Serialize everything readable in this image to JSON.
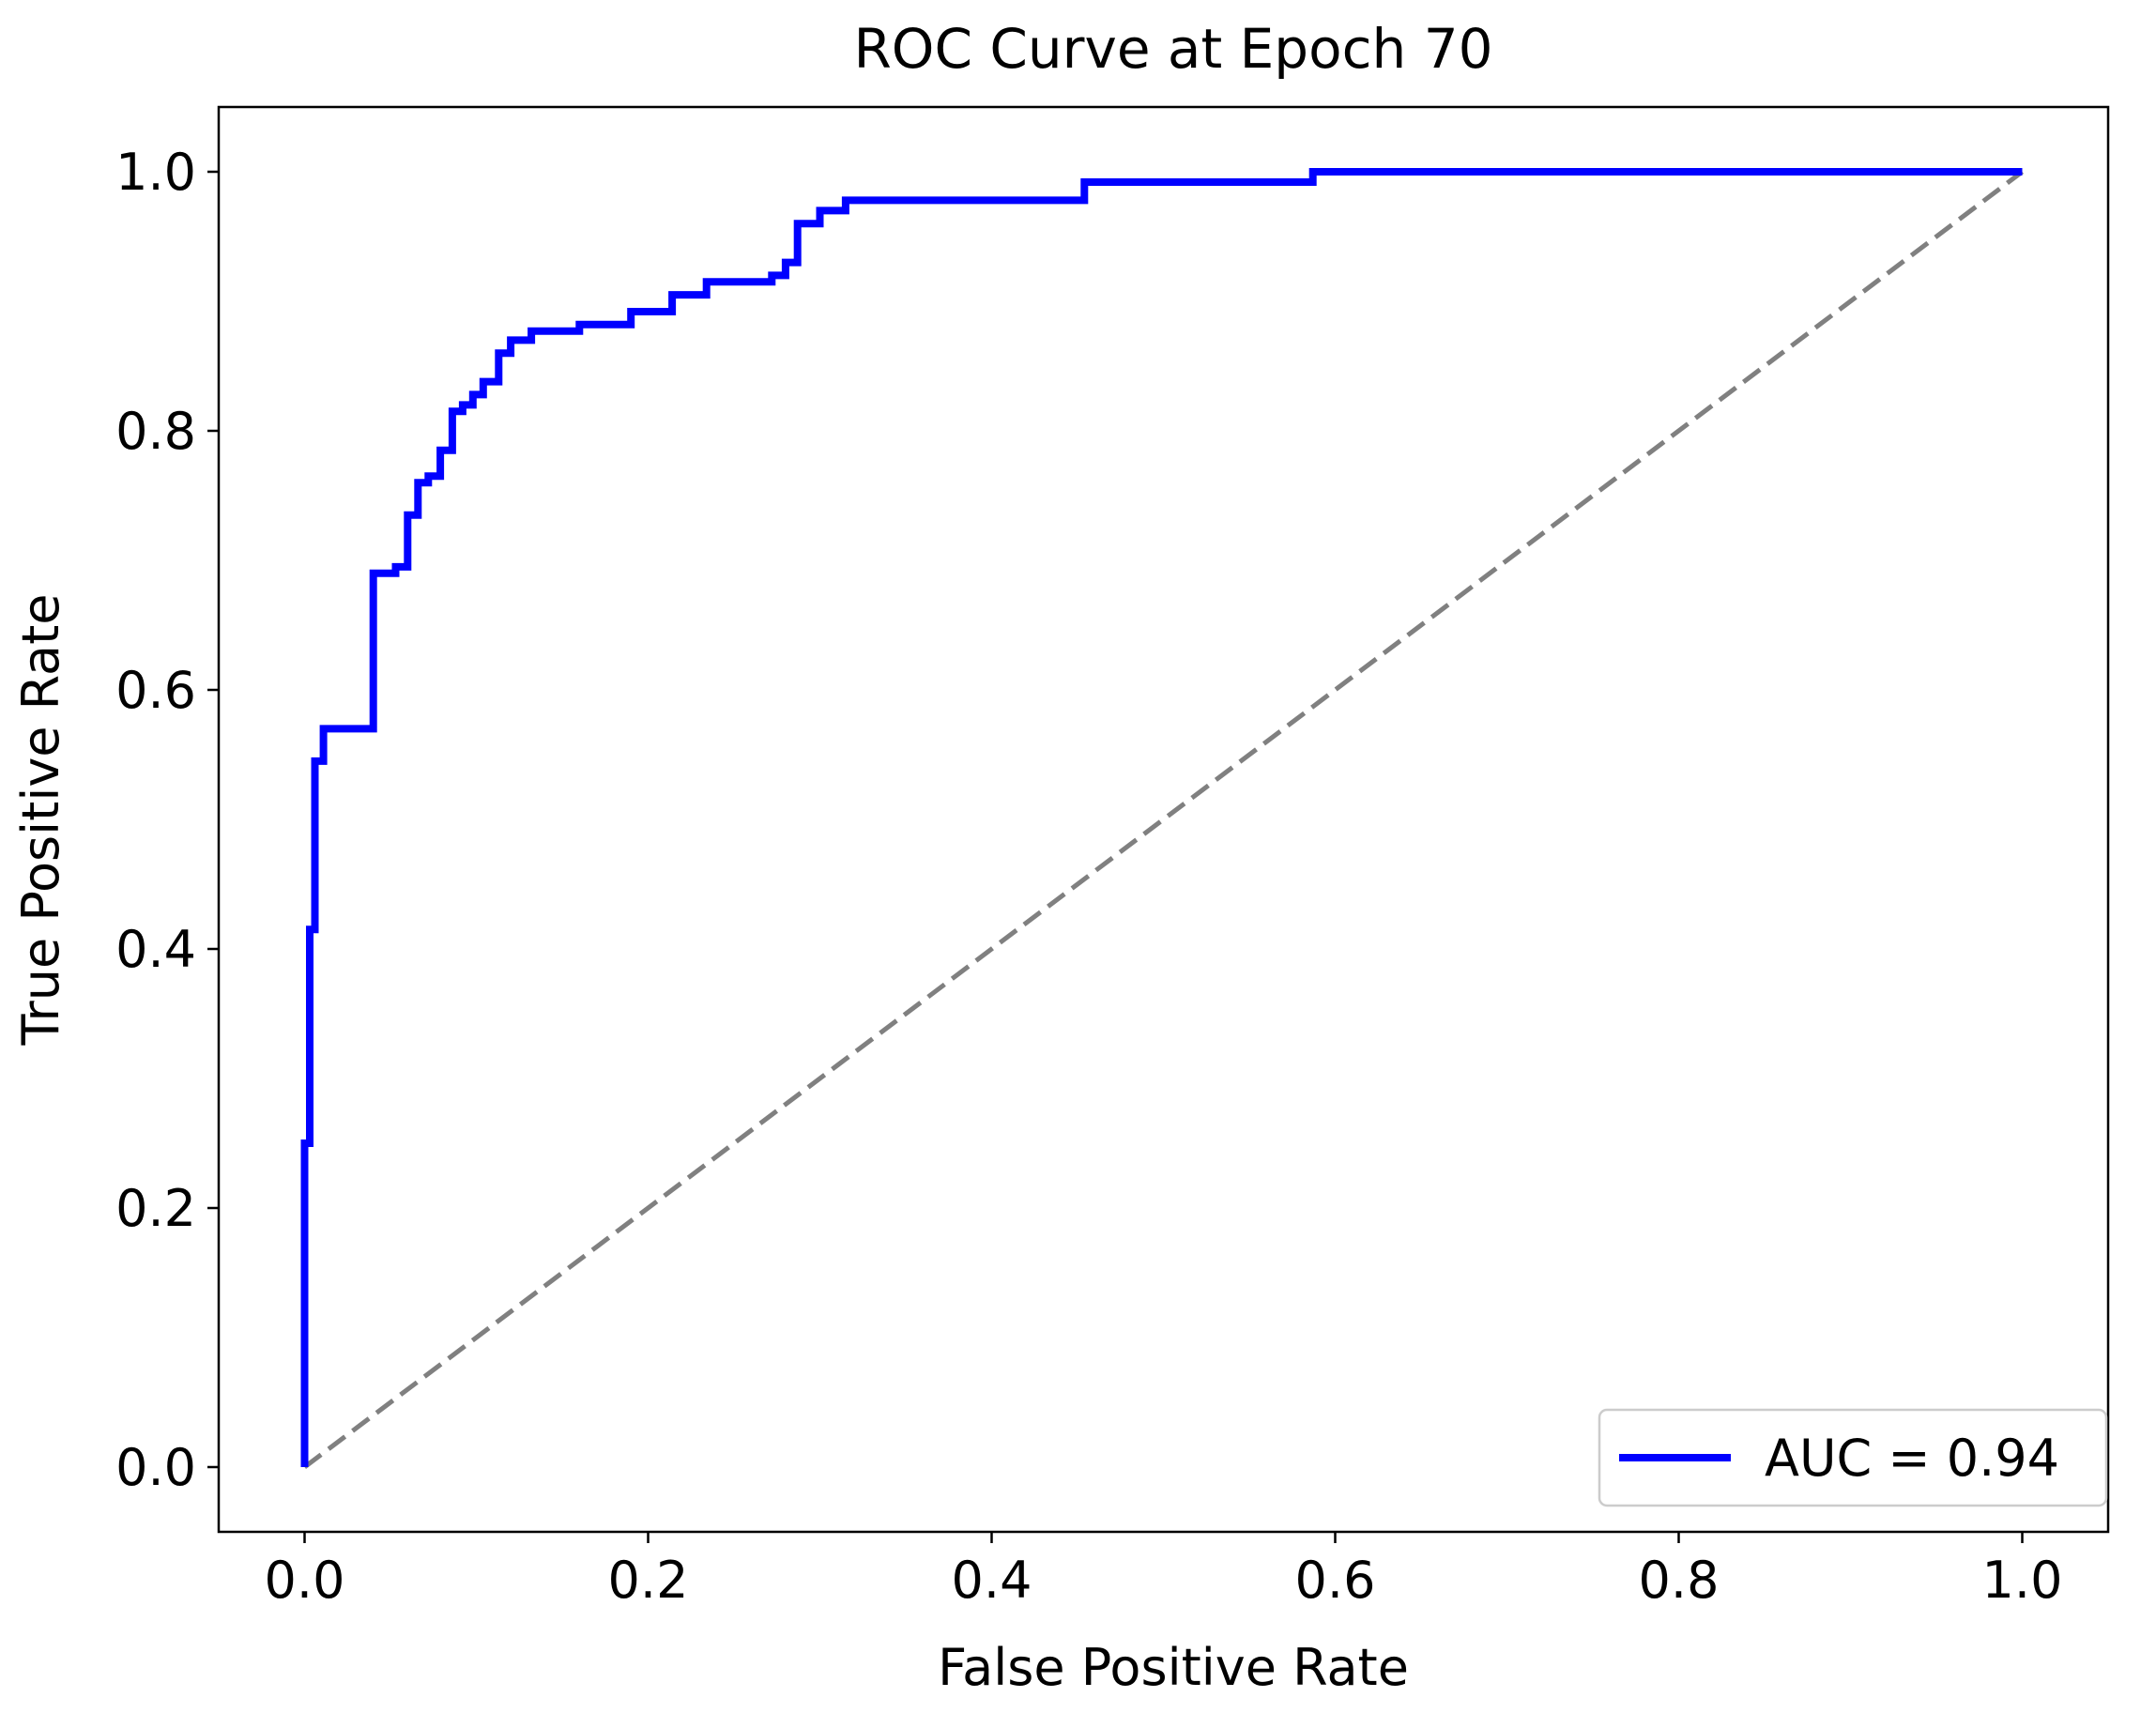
{
  "chart_data": {
    "type": "line",
    "title": "ROC Curve at Epoch 70",
    "xlabel": "False Positive Rate",
    "ylabel": "True Positive Rate",
    "xlim": [
      -0.05,
      1.05
    ],
    "ylim": [
      -0.05,
      1.05
    ],
    "xticks": [
      0.0,
      0.2,
      0.4,
      0.6,
      0.8,
      1.0
    ],
    "xtick_labels": [
      "0.0",
      "0.2",
      "0.4",
      "0.6",
      "0.8",
      "1.0"
    ],
    "yticks": [
      0.0,
      0.2,
      0.4,
      0.6,
      0.8,
      1.0
    ],
    "ytick_labels": [
      "0.0",
      "0.2",
      "0.4",
      "0.6",
      "0.8",
      "1.0"
    ],
    "grid": false,
    "legend_position": "lower right",
    "series": [
      {
        "name": "AUC = 0.94",
        "color": "#0000ff",
        "style": "solid",
        "x": [
          0.0,
          0.0,
          0.003,
          0.003,
          0.006,
          0.006,
          0.011,
          0.011,
          0.014,
          0.014,
          0.019,
          0.019,
          0.025,
          0.025,
          0.04,
          0.04,
          0.053,
          0.053,
          0.06,
          0.06,
          0.066,
          0.066,
          0.072,
          0.072,
          0.079,
          0.079,
          0.086,
          0.086,
          0.092,
          0.092,
          0.098,
          0.098,
          0.104,
          0.104,
          0.113,
          0.113,
          0.12,
          0.12,
          0.132,
          0.132,
          0.16,
          0.16,
          0.19,
          0.19,
          0.214,
          0.214,
          0.234,
          0.234,
          0.272,
          0.272,
          0.28,
          0.28,
          0.287,
          0.287,
          0.3,
          0.3,
          0.315,
          0.315,
          0.454,
          0.454,
          0.587,
          0.587,
          1.0
        ],
        "y": [
          0.0,
          0.25,
          0.25,
          0.415,
          0.415,
          0.545,
          0.545,
          0.57,
          0.57,
          0.57,
          0.57,
          0.57,
          0.57,
          0.57,
          0.57,
          0.69,
          0.69,
          0.695,
          0.695,
          0.735,
          0.735,
          0.76,
          0.76,
          0.765,
          0.765,
          0.785,
          0.785,
          0.815,
          0.815,
          0.82,
          0.82,
          0.828,
          0.828,
          0.838,
          0.838,
          0.86,
          0.86,
          0.87,
          0.87,
          0.877,
          0.877,
          0.882,
          0.882,
          0.892,
          0.892,
          0.905,
          0.905,
          0.915,
          0.915,
          0.92,
          0.92,
          0.93,
          0.93,
          0.96,
          0.96,
          0.97,
          0.97,
          0.978,
          0.978,
          0.992,
          0.992,
          1.0,
          1.0
        ]
      },
      {
        "color": "#808080",
        "style": "dashed",
        "x": [
          0.0,
          1.0
        ],
        "y": [
          0.0,
          1.0
        ]
      }
    ]
  }
}
